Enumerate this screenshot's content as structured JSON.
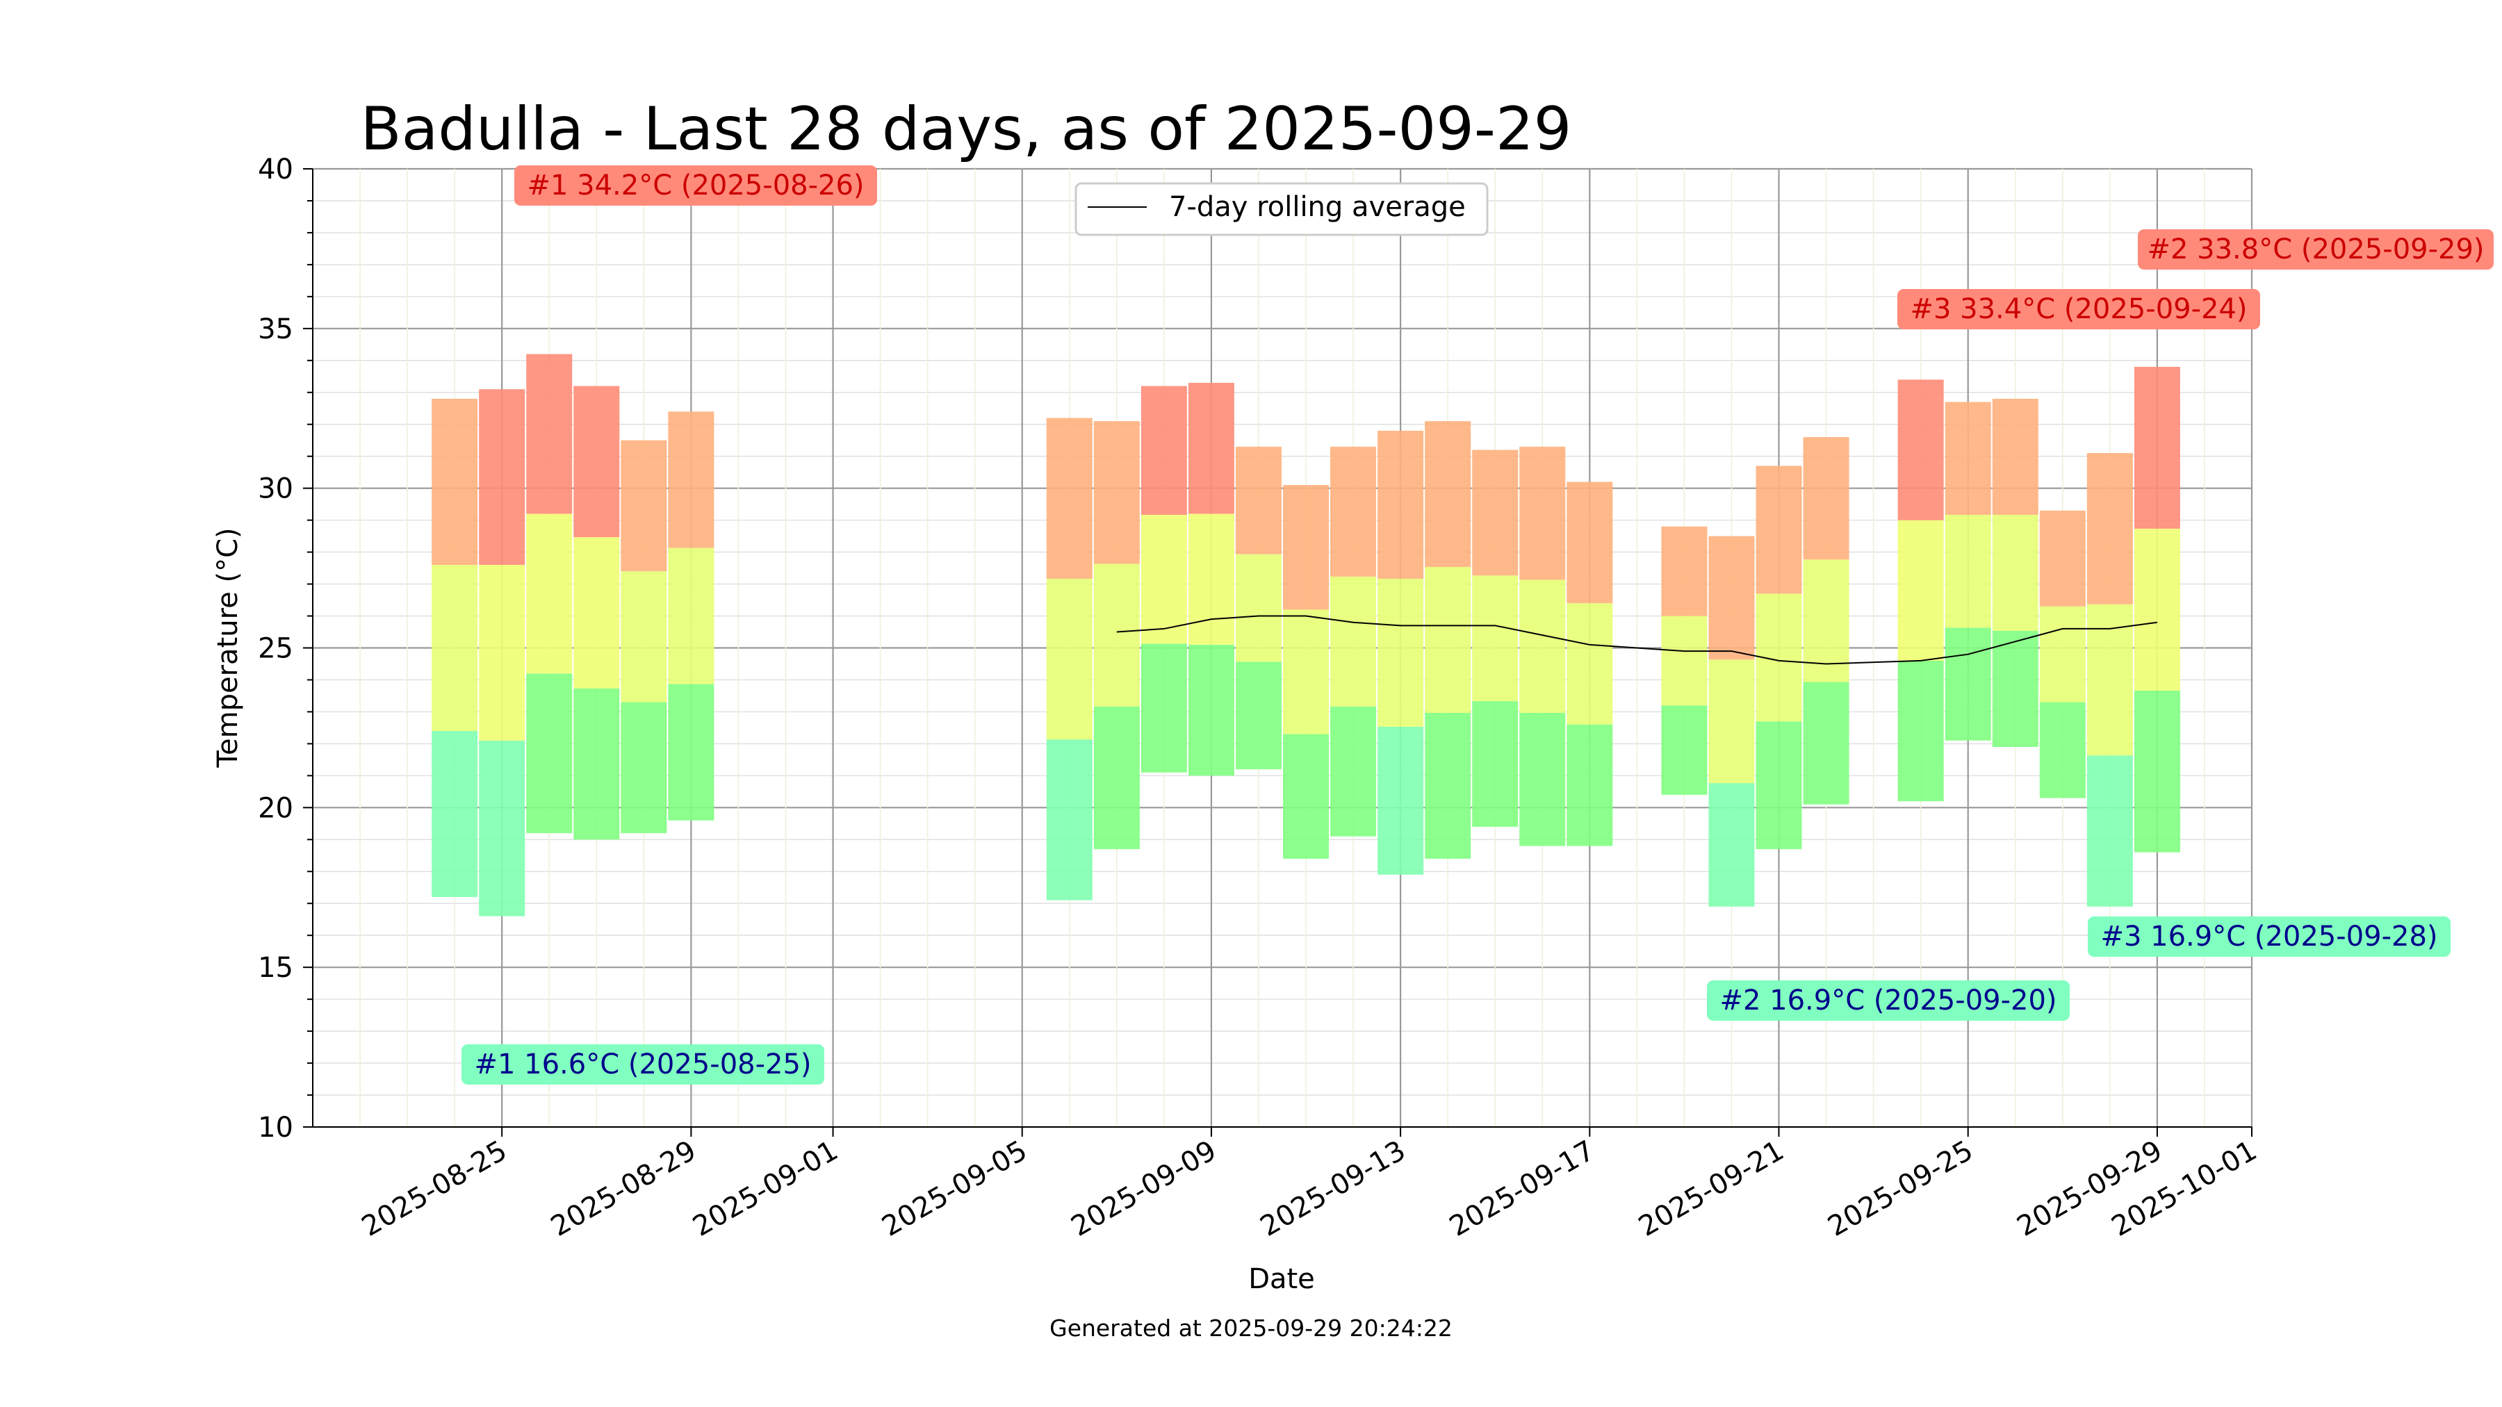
{
  "chart_data": {
    "type": "bar",
    "title": "Badulla - Last 28 days, as of 2025-09-29",
    "xlabel": "Date",
    "ylabel": "Temperature (°C)",
    "footer": "Generated at 2025-09-29 20:24:22",
    "ylim": [
      10,
      40
    ],
    "xlim": [
      "2025-08-21",
      "2025-10-01"
    ],
    "y_ticks": [
      10,
      15,
      20,
      25,
      30,
      35,
      40
    ],
    "x_ticks": [
      "2025-08-25",
      "2025-08-29",
      "2025-09-01",
      "2025-09-05",
      "2025-09-09",
      "2025-09-13",
      "2025-09-17",
      "2025-09-21",
      "2025-09-25",
      "2025-09-29",
      "2025-10-01"
    ],
    "grid": true,
    "legend": {
      "position": "top-center",
      "entries": [
        "7-day rolling average"
      ]
    },
    "colors": {
      "hot": "#ff8a7a",
      "warm": "#ffd27a",
      "mild": "#e8ff70",
      "cool": "#78ff78",
      "cold": "#78ffb0",
      "rolling_line": "#000000",
      "annot_high_bg": "#ff8a7a",
      "annot_high_text": "#cc0000",
      "annot_low_bg": "#80ffc0",
      "annot_low_text": "#00008b"
    },
    "daily": [
      {
        "date": "2025-08-24",
        "min": 17.2,
        "max": 32.8
      },
      {
        "date": "2025-08-25",
        "min": 16.6,
        "max": 33.1
      },
      {
        "date": "2025-08-26",
        "min": 19.2,
        "max": 34.2
      },
      {
        "date": "2025-08-27",
        "min": 19.0,
        "max": 33.2
      },
      {
        "date": "2025-08-28",
        "min": 19.2,
        "max": 31.5
      },
      {
        "date": "2025-08-29",
        "min": 19.6,
        "max": 32.4
      },
      {
        "date": "2025-09-06",
        "min": 17.1,
        "max": 32.2
      },
      {
        "date": "2025-09-07",
        "min": 18.7,
        "max": 32.1
      },
      {
        "date": "2025-09-08",
        "min": 21.1,
        "max": 33.2
      },
      {
        "date": "2025-09-09",
        "min": 21.0,
        "max": 33.3
      },
      {
        "date": "2025-09-10",
        "min": 21.2,
        "max": 31.3
      },
      {
        "date": "2025-09-11",
        "min": 18.4,
        "max": 30.1
      },
      {
        "date": "2025-09-12",
        "min": 19.1,
        "max": 31.3
      },
      {
        "date": "2025-09-13",
        "min": 17.9,
        "max": 31.8
      },
      {
        "date": "2025-09-14",
        "min": 18.4,
        "max": 32.1
      },
      {
        "date": "2025-09-15",
        "min": 19.4,
        "max": 31.2
      },
      {
        "date": "2025-09-16",
        "min": 18.8,
        "max": 31.3
      },
      {
        "date": "2025-09-17",
        "min": 18.8,
        "max": 30.2
      },
      {
        "date": "2025-09-19",
        "min": 20.4,
        "max": 28.8
      },
      {
        "date": "2025-09-20",
        "min": 16.9,
        "max": 28.5
      },
      {
        "date": "2025-09-21",
        "min": 18.7,
        "max": 30.7
      },
      {
        "date": "2025-09-22",
        "min": 20.1,
        "max": 31.6
      },
      {
        "date": "2025-09-24",
        "min": 20.2,
        "max": 33.4
      },
      {
        "date": "2025-09-25",
        "min": 22.1,
        "max": 32.7
      },
      {
        "date": "2025-09-26",
        "min": 21.9,
        "max": 32.8
      },
      {
        "date": "2025-09-27",
        "min": 20.3,
        "max": 29.3
      },
      {
        "date": "2025-09-28",
        "min": 16.9,
        "max": 31.1
      },
      {
        "date": "2025-09-29",
        "min": 18.6,
        "max": 33.8
      }
    ],
    "series": [
      {
        "name": "7-day rolling average",
        "points": [
          {
            "date": "2025-09-07",
            "value": 25.5
          },
          {
            "date": "2025-09-08",
            "value": 25.6
          },
          {
            "date": "2025-09-09",
            "value": 25.9
          },
          {
            "date": "2025-09-10",
            "value": 26.0
          },
          {
            "date": "2025-09-11",
            "value": 26.0
          },
          {
            "date": "2025-09-12",
            "value": 25.8
          },
          {
            "date": "2025-09-13",
            "value": 25.7
          },
          {
            "date": "2025-09-14",
            "value": 25.7
          },
          {
            "date": "2025-09-15",
            "value": 25.7
          },
          {
            "date": "2025-09-16",
            "value": 25.4
          },
          {
            "date": "2025-09-17",
            "value": 25.1
          },
          {
            "date": "2025-09-19",
            "value": 24.9
          },
          {
            "date": "2025-09-20",
            "value": 24.9
          },
          {
            "date": "2025-09-21",
            "value": 24.6
          },
          {
            "date": "2025-09-22",
            "value": 24.5
          },
          {
            "date": "2025-09-24",
            "value": 24.6
          },
          {
            "date": "2025-09-25",
            "value": 24.8
          },
          {
            "date": "2025-09-26",
            "value": 25.2
          },
          {
            "date": "2025-09-27",
            "value": 25.6
          },
          {
            "date": "2025-09-28",
            "value": 25.6
          },
          {
            "date": "2025-09-29",
            "value": 25.8
          }
        ]
      }
    ],
    "annotations": [
      {
        "kind": "high",
        "text": "#1 34.2°C (2025-08-26)"
      },
      {
        "kind": "high",
        "text": "#2 33.8°C (2025-09-29)"
      },
      {
        "kind": "high",
        "text": "#3 33.4°C (2025-09-24)"
      },
      {
        "kind": "low",
        "text": "#1 16.6°C (2025-08-25)"
      },
      {
        "kind": "low",
        "text": "#2 16.9°C (2025-09-20)"
      },
      {
        "kind": "low",
        "text": "#3 16.9°C (2025-09-28)"
      }
    ]
  }
}
